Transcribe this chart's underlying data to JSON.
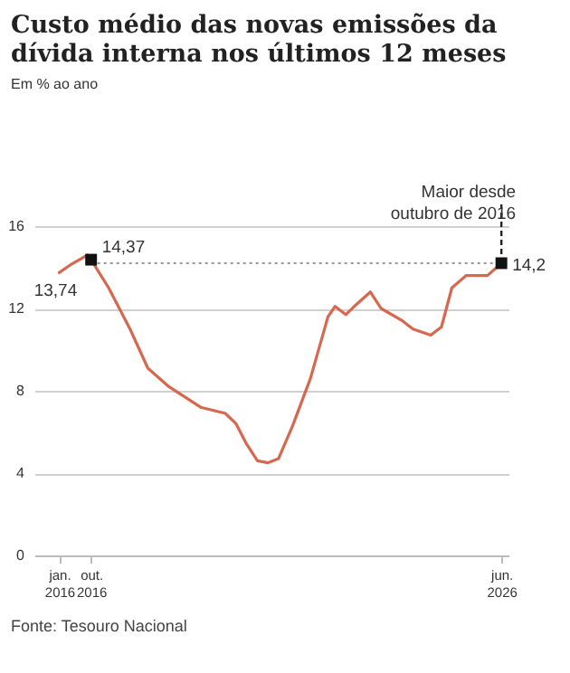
{
  "chart_data": {
    "type": "line",
    "title": "Custo médio das novas emissões da dívida interna nos últimos 12 meses",
    "subtitle": "Em % ao ano",
    "x": [
      "2016-01",
      "2016-04",
      "2016-09",
      "2016-10",
      "2017-03",
      "2017-09",
      "2018-02",
      "2018-08",
      "2019-05",
      "2019-12",
      "2020-03",
      "2020-06",
      "2020-09",
      "2020-12",
      "2021-03",
      "2021-07",
      "2021-12",
      "2022-05",
      "2022-07",
      "2022-10",
      "2023-01",
      "2023-05",
      "2023-08",
      "2024-02",
      "2024-05",
      "2024-10",
      "2025-01",
      "2025-04",
      "2025-08",
      "2026-02",
      "2026-06"
    ],
    "series": [
      {
        "color": "#d6684f",
        "values": [
          13.74,
          14.1,
          14.6,
          14.37,
          13.0,
          11.0,
          9.1,
          8.2,
          7.2,
          6.9,
          6.4,
          5.4,
          4.6,
          4.5,
          4.7,
          6.3,
          8.6,
          11.6,
          12.1,
          11.7,
          12.2,
          12.8,
          12.0,
          11.4,
          11.0,
          10.7,
          11.1,
          13.0,
          13.6,
          13.6,
          14.2
        ]
      },
      {
        "type": "scatter",
        "color": "#111111",
        "marker": "square",
        "x": [
          "2016-10",
          "2026-06"
        ],
        "values": [
          14.37,
          14.2
        ]
      }
    ],
    "xlim": [
      "2015-06",
      "2026-08"
    ],
    "xticks": [
      {
        "value": "2016-01",
        "label": "jan. 2016"
      },
      {
        "value": "2016-10",
        "label": "out. 2016"
      },
      {
        "value": "2026-06",
        "label": "jun. 2026"
      }
    ],
    "ylim": [
      0,
      16
    ],
    "yticks": [
      0,
      4,
      8,
      12,
      16
    ],
    "grid": "y",
    "ref_lines": [
      {
        "axis": "y",
        "value": 14.2,
        "color": "#999999",
        "line_style": "dotted"
      },
      {
        "axis": "x",
        "value": "2026-06",
        "label": "Maior desde outubro de 2016",
        "color": "#222222",
        "line_style": "dashed"
      }
    ],
    "annotations": [
      {
        "text": "13,74",
        "x": "2016-01",
        "y": 13.74
      },
      {
        "text": "14,37",
        "x": "2016-10",
        "y": 14.37
      },
      {
        "text": "14,2",
        "x": "2026-06",
        "y": 14.2
      },
      "Fonte: Tesouro Nacional"
    ]
  }
}
